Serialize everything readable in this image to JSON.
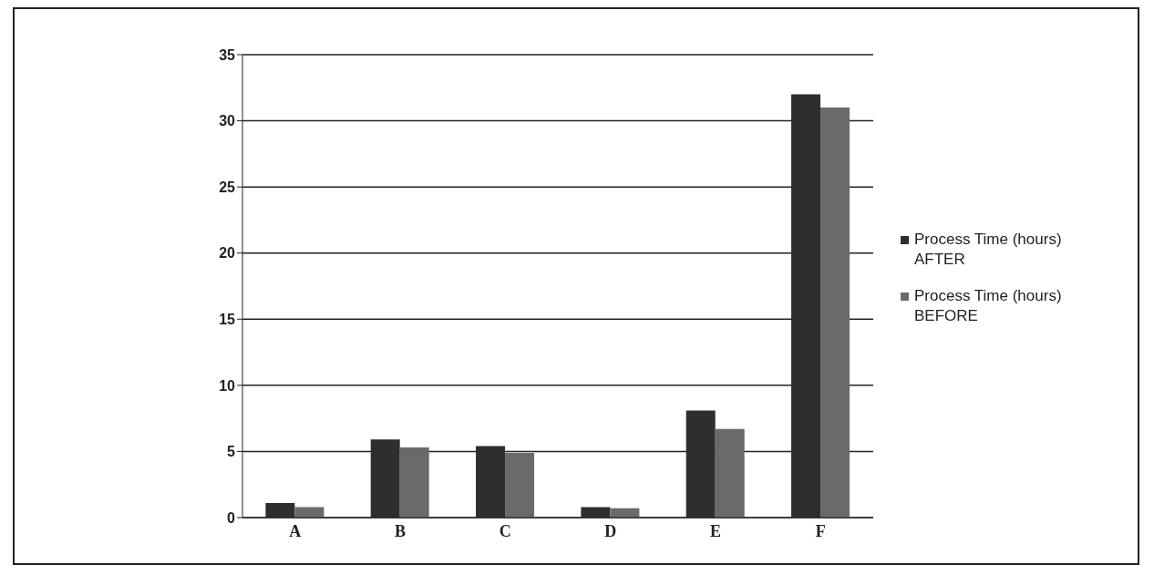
{
  "chart_data": {
    "type": "bar",
    "categories": [
      "A",
      "B",
      "C",
      "D",
      "E",
      "F"
    ],
    "series": [
      {
        "name": "Process Time (hours) AFTER",
        "color": "#2e2e2e",
        "values": [
          1.1,
          5.9,
          5.4,
          0.8,
          8.1,
          32
        ]
      },
      {
        "name": "Process Time (hours) BEFORE",
        "color": "#6a6a6a",
        "values": [
          0.8,
          5.3,
          4.9,
          0.7,
          6.7,
          31
        ]
      }
    ],
    "ylim": [
      0,
      35
    ],
    "yticks": [
      0,
      5,
      10,
      15,
      20,
      25,
      30,
      35
    ],
    "grid": "y",
    "legend": "right"
  }
}
